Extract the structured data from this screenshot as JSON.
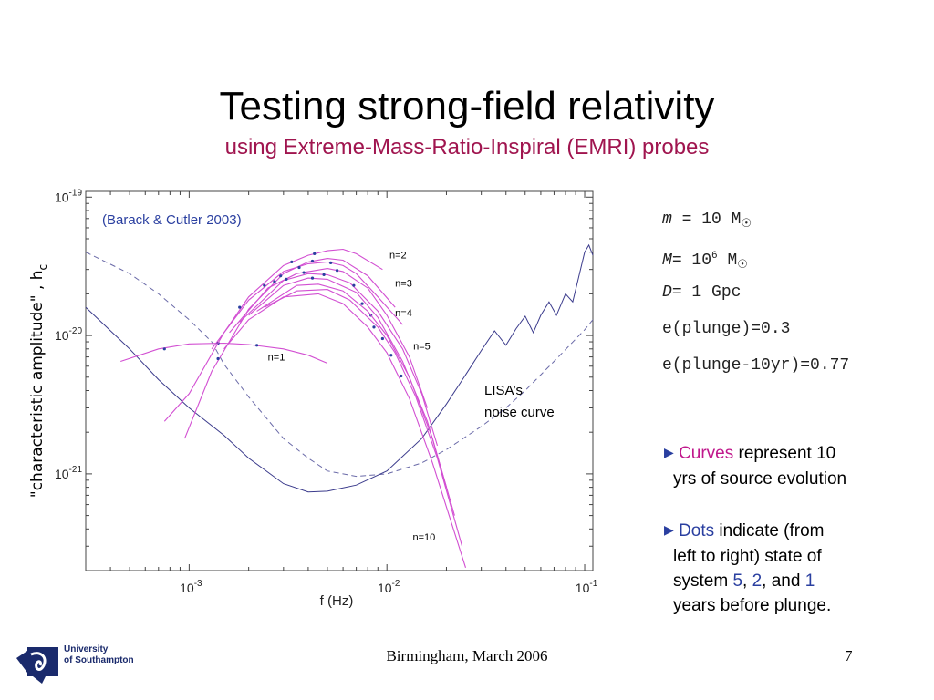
{
  "slide": {
    "title": "Testing strong-field relativity",
    "subtitle": "using Extreme-Mass-Ratio-Inspiral (EMRI) probes",
    "footer": "Birmingham, March 2006",
    "page_number": "7",
    "logo": {
      "line1": "University",
      "line2": "of Southampton"
    },
    "colors": {
      "subtitle": "#a0154f",
      "curve": "#d24fd2",
      "noise": "#3b3b8c",
      "dot": "#2a3fa0",
      "annotation": "#2a3fa0"
    }
  },
  "params": {
    "m": {
      "sym": "m",
      "rest": " = 10 M"
    },
    "M": {
      "sym": "M",
      "rest": "= 10",
      "exp": "6",
      "unit": " M"
    },
    "D": {
      "sym": "D",
      "rest": "= 1 Gpc"
    },
    "e1": "e(plunge)=0.3",
    "e2": "e(plunge-10yr)=0.77",
    "sun_symbol": "☉"
  },
  "bullets": {
    "b1": {
      "accent": "Curves",
      "rest": " represent 10",
      "line2": "yrs of source evolution"
    },
    "b2": {
      "accent": "Dots",
      "rest": " indicate (from",
      "line2": "left to right) state of",
      "line3a": "system ",
      "n5": "5",
      "comma1": ", ",
      "n2": "2",
      "and": ", and ",
      "n1": "1",
      "line4": "years before plunge."
    }
  },
  "chart_data": {
    "type": "line",
    "xlabel": "f (Hz)",
    "ylabel": "\"characteristic amplitude\" , h",
    "ylabel_sub": "c",
    "annotation": "(Barack & Cutler 2003)",
    "noise_label": [
      "LISA’s",
      "noise curve"
    ],
    "x_scale": "log",
    "y_scale": "log",
    "xlim": [
      0.0003,
      0.11
    ],
    "ylim": [
      2e-22,
      1.1e-19
    ],
    "x_ticks": [
      {
        "value": 0.001,
        "base": "10",
        "exp": "-3"
      },
      {
        "value": 0.01,
        "base": "10",
        "exp": "-2"
      },
      {
        "value": 0.1,
        "base": "10",
        "exp": "-1"
      }
    ],
    "y_ticks": [
      {
        "value": 1e-21,
        "base": "10",
        "exp": "-21"
      },
      {
        "value": 1e-20,
        "base": "10",
        "exp": "-20"
      },
      {
        "value": 1e-19,
        "base": "10",
        "exp": "-19"
      }
    ],
    "noise_curve": [
      [
        0.0003,
        1.6e-20
      ],
      [
        0.0005,
        8e-21
      ],
      [
        0.0007,
        4.8e-21
      ],
      [
        0.001,
        3e-21
      ],
      [
        0.0015,
        1.9e-21
      ],
      [
        0.002,
        1.3e-21
      ],
      [
        0.003,
        8.5e-22
      ],
      [
        0.004,
        7.4e-22
      ],
      [
        0.005,
        7.5e-22
      ],
      [
        0.007,
        8.3e-22
      ],
      [
        0.01,
        1.05e-21
      ],
      [
        0.015,
        1.8e-21
      ],
      [
        0.02,
        3.2e-21
      ],
      [
        0.025,
        5.2e-21
      ],
      [
        0.03,
        7.8e-21
      ],
      [
        0.035,
        1.08e-20
      ],
      [
        0.04,
        8.5e-21
      ],
      [
        0.045,
        1.12e-20
      ],
      [
        0.05,
        1.38e-20
      ],
      [
        0.055,
        1.05e-20
      ],
      [
        0.06,
        1.4e-20
      ],
      [
        0.066,
        1.75e-20
      ],
      [
        0.072,
        1.4e-20
      ],
      [
        0.08,
        2e-20
      ],
      [
        0.087,
        1.75e-20
      ],
      [
        0.093,
        2.6e-20
      ],
      [
        0.1,
        4e-20
      ],
      [
        0.105,
        4.5e-20
      ],
      [
        0.11,
        3.8e-20
      ]
    ],
    "dashed_curve": [
      [
        0.0003,
        4e-20
      ],
      [
        0.0005,
        2.8e-20
      ],
      [
        0.0007,
        2e-20
      ],
      [
        0.001,
        1.3e-20
      ],
      [
        0.0013,
        9e-21
      ],
      [
        0.0015,
        6.2e-21
      ],
      [
        0.002,
        3.6e-21
      ],
      [
        0.003,
        1.8e-21
      ],
      [
        0.004,
        1.3e-21
      ],
      [
        0.005,
        1.05e-21
      ],
      [
        0.007,
        9.6e-22
      ],
      [
        0.01,
        1e-21
      ],
      [
        0.015,
        1.2e-21
      ],
      [
        0.02,
        1.5e-21
      ],
      [
        0.03,
        2.2e-21
      ],
      [
        0.04,
        3e-21
      ],
      [
        0.05,
        4e-21
      ],
      [
        0.07,
        6.5e-21
      ],
      [
        0.1,
        1.1e-20
      ],
      [
        0.11,
        1.3e-20
      ]
    ],
    "series": [
      {
        "name": "n=1",
        "points": [
          [
            0.00045,
            6.5e-21
          ],
          [
            0.0007,
            8e-21
          ],
          [
            0.001,
            8.7e-21
          ],
          [
            0.0015,
            8.8e-21
          ],
          [
            0.002,
            8.6e-21
          ],
          [
            0.003,
            8e-21
          ],
          [
            0.004,
            7.2e-21
          ],
          [
            0.005,
            6.3e-21
          ]
        ],
        "dots": [
          [
            0.00075,
            8e-21
          ],
          [
            0.0014,
            8.8e-21
          ],
          [
            0.0022,
            8.5e-21
          ]
        ],
        "label_at": [
          0.0025,
          6.6e-21
        ]
      },
      {
        "name": "n=2",
        "points": [
          [
            0.00075,
            2.4e-21
          ],
          [
            0.001,
            3.8e-21
          ],
          [
            0.0015,
            1.05e-20
          ],
          [
            0.002,
            1.9e-20
          ],
          [
            0.003,
            3.2e-20
          ],
          [
            0.004,
            3.8e-20
          ],
          [
            0.005,
            4.1e-20
          ],
          [
            0.006,
            4.2e-20
          ],
          [
            0.007,
            3.9e-20
          ],
          [
            0.0095,
            3e-20
          ]
        ],
        "dots": [
          [
            0.0018,
            1.6e-20
          ],
          [
            0.0033,
            3.4e-20
          ],
          [
            0.0043,
            3.9e-20
          ]
        ],
        "label_at": [
          0.0103,
          3.6e-20
        ]
      },
      {
        "name": "n=3",
        "points": [
          [
            0.00095,
            1.8e-21
          ],
          [
            0.0013,
            5.5e-21
          ],
          [
            0.002,
            1.55e-20
          ],
          [
            0.003,
            2.8e-20
          ],
          [
            0.004,
            3.4e-20
          ],
          [
            0.005,
            3.6e-20
          ],
          [
            0.006,
            3.5e-20
          ],
          [
            0.008,
            2.7e-20
          ],
          [
            0.011,
            1.6e-20
          ]
        ],
        "dots": [
          [
            0.0014,
            6.8e-21
          ],
          [
            0.0029,
            2.7e-20
          ],
          [
            0.0042,
            3.45e-20
          ]
        ],
        "label_at": [
          0.011,
          2.25e-20
        ]
      },
      {
        "name": "n=4",
        "points": [
          [
            0.0013,
            8e-21
          ],
          [
            0.002,
            1.8e-20
          ],
          [
            0.003,
            2.9e-20
          ],
          [
            0.004,
            3.3e-20
          ],
          [
            0.005,
            3.4e-20
          ],
          [
            0.006,
            3.2e-20
          ],
          [
            0.007,
            2.8e-20
          ],
          [
            0.009,
            1.9e-20
          ],
          [
            0.012,
            1.2e-20
          ]
        ],
        "dots": [
          [
            0.0024,
            2.3e-20
          ],
          [
            0.0036,
            3.1e-20
          ],
          [
            0.0052,
            3.35e-20
          ]
        ],
        "label_at": [
          0.011,
          1.38e-20
        ]
      },
      {
        "name": "n=5",
        "points": [
          [
            0.0016,
            1.05e-20
          ],
          [
            0.0025,
            2.2e-20
          ],
          [
            0.0035,
            2.8e-20
          ],
          [
            0.005,
            3.05e-20
          ],
          [
            0.006,
            2.9e-20
          ],
          [
            0.008,
            2.2e-20
          ],
          [
            0.01,
            1.4e-20
          ],
          [
            0.013,
            7e-21
          ],
          [
            0.016,
            3e-21
          ]
        ],
        "dots": [
          [
            0.0027,
            2.45e-20
          ],
          [
            0.0038,
            2.85e-20
          ],
          [
            0.0056,
            2.95e-20
          ]
        ],
        "label_at": [
          0.0136,
          7.9e-21
        ]
      },
      {
        "name": "",
        "points": [
          [
            0.0018,
            1.25e-20
          ],
          [
            0.003,
            2.5e-20
          ],
          [
            0.004,
            2.8e-20
          ],
          [
            0.005,
            2.75e-20
          ],
          [
            0.0065,
            2.4e-20
          ],
          [
            0.009,
            1.5e-20
          ],
          [
            0.012,
            8e-21
          ],
          [
            0.015,
            3.8e-21
          ],
          [
            0.018,
            1.6e-21
          ]
        ],
        "dots": [
          [
            0.0031,
            2.55e-20
          ],
          [
            0.0048,
            2.75e-20
          ],
          [
            0.0068,
            2.3e-20
          ]
        ]
      },
      {
        "name": "",
        "points": [
          [
            0.002,
            1.4e-20
          ],
          [
            0.003,
            2.3e-20
          ],
          [
            0.004,
            2.6e-20
          ],
          [
            0.005,
            2.55e-20
          ],
          [
            0.007,
            2.05e-20
          ],
          [
            0.009,
            1.35e-20
          ],
          [
            0.012,
            6.5e-21
          ],
          [
            0.016,
            2.4e-21
          ],
          [
            0.02,
            8e-22
          ]
        ],
        "dots": [
          [
            0.0042,
            2.6e-20
          ],
          [
            0.0075,
            1.7e-20
          ],
          [
            0.0083,
            1.4e-20
          ]
        ]
      },
      {
        "name": "",
        "points": [
          [
            0.0022,
            1.5e-20
          ],
          [
            0.0035,
            2.3e-20
          ],
          [
            0.0045,
            2.35e-20
          ],
          [
            0.006,
            2.1e-20
          ],
          [
            0.008,
            1.5e-20
          ],
          [
            0.01,
            1e-20
          ],
          [
            0.013,
            5e-21
          ],
          [
            0.017,
            1.8e-21
          ],
          [
            0.022,
            5e-22
          ]
        ],
        "dots": [
          [
            0.0086,
            1.15e-20
          ],
          [
            0.0095,
            9.5e-21
          ]
        ]
      },
      {
        "name": "",
        "points": [
          [
            0.0024,
            1.6e-20
          ],
          [
            0.0035,
            2.1e-20
          ],
          [
            0.005,
            2.15e-20
          ],
          [
            0.0065,
            1.8e-20
          ],
          [
            0.009,
            1.15e-20
          ],
          [
            0.011,
            7.5e-21
          ],
          [
            0.014,
            3.6e-21
          ],
          [
            0.018,
            1.3e-21
          ],
          [
            0.024,
            3e-22
          ]
        ],
        "dots": [
          [
            0.0105,
            7.2e-21
          ]
        ]
      },
      {
        "name": "n=10",
        "points": [
          [
            0.0015,
            8e-21
          ],
          [
            0.002,
            1.3e-20
          ],
          [
            0.003,
            1.9e-20
          ],
          [
            0.0045,
            2e-20
          ],
          [
            0.006,
            1.7e-20
          ],
          [
            0.008,
            1.15e-20
          ],
          [
            0.01,
            7.5e-21
          ],
          [
            0.013,
            3.5e-21
          ],
          [
            0.017,
            1.2e-21
          ],
          [
            0.025,
            2.1e-22
          ]
        ],
        "dots": [
          [
            0.0118,
            5.1e-21
          ]
        ],
        "label_at": [
          0.0135,
          3.3e-22
        ]
      }
    ]
  }
}
